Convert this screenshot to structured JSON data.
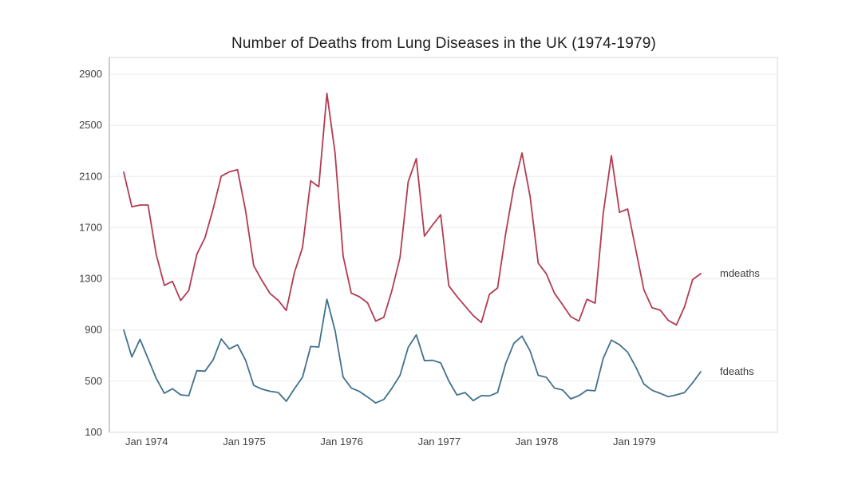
{
  "chart_data": {
    "type": "line",
    "title": "Number of Deaths from Lung Diseases in the UK (1974-1979)",
    "xlabel": "",
    "ylabel": "",
    "x_unit": "month",
    "months_count": 72,
    "x_tick_months": [
      0,
      12,
      24,
      36,
      48,
      60
    ],
    "x_tick_labels": [
      "Jan 1974",
      "Jan 1975",
      "Jan 1976",
      "Jan 1977",
      "Jan 1978",
      "Jan 1979"
    ],
    "y_ticks": [
      100,
      500,
      900,
      1300,
      1700,
      2100,
      2500,
      2900
    ],
    "ylim": [
      100,
      3030
    ],
    "grid": "horizontal-only",
    "legend_position": "inline-right-end-labels",
    "series": [
      {
        "name": "mdeaths",
        "label": "mdeaths",
        "line_color": "#b23b52",
        "label_color": "#c43a55",
        "values": [
          2134,
          1863,
          1877,
          1877,
          1492,
          1249,
          1280,
          1131,
          1209,
          1492,
          1621,
          1846,
          2103,
          2137,
          2153,
          1833,
          1403,
          1288,
          1186,
          1133,
          1053,
          1347,
          1545,
          2066,
          2020,
          2750,
          2283,
          1479,
          1189,
          1160,
          1113,
          970,
          999,
          1208,
          1467,
          2059,
          2240,
          1634,
          1722,
          1801,
          1246,
          1162,
          1087,
          1013,
          959,
          1179,
          1229,
          1655,
          2019,
          2284,
          1942,
          1423,
          1340,
          1187,
          1098,
          1004,
          970,
          1140,
          1110,
          1812,
          2263,
          1820,
          1846,
          1531,
          1215,
          1075,
          1056,
          975,
          940,
          1081,
          1294,
          1341
        ]
      },
      {
        "name": "fdeaths",
        "label": "fdeaths",
        "line_color": "#41718c",
        "label_color": "#4579a4",
        "values": [
          901,
          689,
          827,
          677,
          522,
          406,
          441,
          393,
          387,
          582,
          578,
          666,
          830,
          752,
          785,
          664,
          467,
          438,
          421,
          412,
          343,
          440,
          531,
          771,
          767,
          1141,
          896,
          532,
          447,
          420,
          376,
          330,
          357,
          445,
          546,
          764,
          862,
          660,
          663,
          643,
          502,
          392,
          411,
          348,
          387,
          385,
          411,
          638,
          796,
          853,
          737,
          546,
          530,
          446,
          431,
          362,
          387,
          430,
          425,
          679,
          821,
          785,
          727,
          612,
          478,
          429,
          405,
          379,
          393,
          411,
          487,
          574
        ]
      }
    ],
    "colors": {
      "background": "#ffffff",
      "panel_background": "#ffffff",
      "panel_border": "#d9d9d9",
      "y_axis_line": "#aeaeae",
      "gridline": "#ececec",
      "tick_label": "#3f3f3f",
      "title": "#1c1c1c"
    }
  }
}
